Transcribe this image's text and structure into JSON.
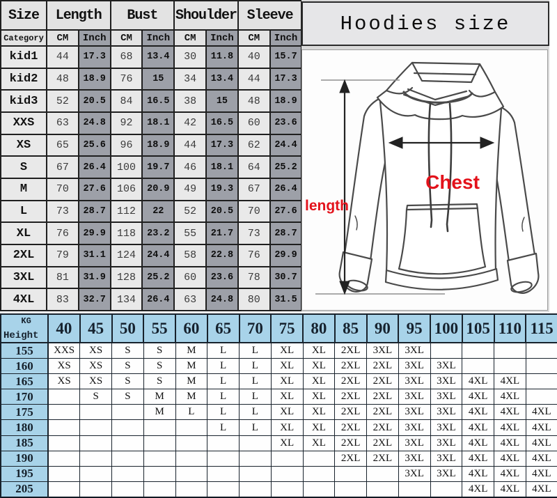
{
  "size_table": {
    "header": [
      "Size",
      "Length",
      "Bust",
      "Shoulder",
      "Sleeve"
    ],
    "subheader": {
      "category": "Category",
      "cm": "CM",
      "inch": "Inch"
    },
    "rows": [
      [
        "kid1",
        "44",
        "17.3",
        "68",
        "13.4",
        "30",
        "11.8",
        "40",
        "15.7"
      ],
      [
        "kid2",
        "48",
        "18.9",
        "76",
        "15",
        "34",
        "13.4",
        "44",
        "17.3"
      ],
      [
        "kid3",
        "52",
        "20.5",
        "84",
        "16.5",
        "38",
        "15",
        "48",
        "18.9"
      ],
      [
        "XXS",
        "63",
        "24.8",
        "92",
        "18.1",
        "42",
        "16.5",
        "60",
        "23.6"
      ],
      [
        "XS",
        "65",
        "25.6",
        "96",
        "18.9",
        "44",
        "17.3",
        "62",
        "24.4"
      ],
      [
        "S",
        "67",
        "26.4",
        "100",
        "19.7",
        "46",
        "18.1",
        "64",
        "25.2"
      ],
      [
        "M",
        "70",
        "27.6",
        "106",
        "20.9",
        "49",
        "19.3",
        "67",
        "26.4"
      ],
      [
        "L",
        "73",
        "28.7",
        "112",
        "22",
        "52",
        "20.5",
        "70",
        "27.6"
      ],
      [
        "XL",
        "76",
        "29.9",
        "118",
        "23.2",
        "55",
        "21.7",
        "73",
        "28.7"
      ],
      [
        "2XL",
        "79",
        "31.1",
        "124",
        "24.4",
        "58",
        "22.8",
        "76",
        "29.9"
      ],
      [
        "3XL",
        "81",
        "31.9",
        "128",
        "25.2",
        "60",
        "23.6",
        "78",
        "30.7"
      ],
      [
        "4XL",
        "83",
        "32.7",
        "134",
        "26.4",
        "63",
        "24.8",
        "80",
        "31.5"
      ]
    ]
  },
  "right_panel": {
    "title": "Hoodies size",
    "length_label": "length",
    "chest_label": "Chest"
  },
  "fit_table": {
    "corner_top": "KG",
    "corner_bottom": "Height",
    "weights": [
      "40",
      "45",
      "50",
      "55",
      "60",
      "65",
      "70",
      "75",
      "80",
      "85",
      "90",
      "95",
      "100",
      "105",
      "110",
      "115"
    ],
    "rows": [
      {
        "height": "155",
        "cells": [
          "XXS",
          "XS",
          "S",
          "S",
          "M",
          "L",
          "L",
          "XL",
          "XL",
          "2XL",
          "3XL",
          "3XL",
          "",
          "",
          "",
          ""
        ]
      },
      {
        "height": "160",
        "cells": [
          "XS",
          "XS",
          "S",
          "S",
          "M",
          "L",
          "L",
          "XL",
          "XL",
          "2XL",
          "2XL",
          "3XL",
          "3XL",
          "",
          "",
          ""
        ]
      },
      {
        "height": "165",
        "cells": [
          "XS",
          "XS",
          "S",
          "S",
          "M",
          "L",
          "L",
          "XL",
          "XL",
          "2XL",
          "2XL",
          "3XL",
          "3XL",
          "4XL",
          "4XL",
          ""
        ]
      },
      {
        "height": "170",
        "cells": [
          "",
          "S",
          "S",
          "M",
          "M",
          "L",
          "L",
          "XL",
          "XL",
          "2XL",
          "2XL",
          "3XL",
          "3XL",
          "4XL",
          "4XL",
          ""
        ]
      },
      {
        "height": "175",
        "cells": [
          "",
          "",
          "",
          "M",
          "L",
          "L",
          "L",
          "XL",
          "XL",
          "2XL",
          "2XL",
          "3XL",
          "3XL",
          "4XL",
          "4XL",
          "4XL"
        ]
      },
      {
        "height": "180",
        "cells": [
          "",
          "",
          "",
          "",
          "",
          "L",
          "L",
          "XL",
          "XL",
          "2XL",
          "2XL",
          "3XL",
          "3XL",
          "4XL",
          "4XL",
          "4XL"
        ]
      },
      {
        "height": "185",
        "cells": [
          "",
          "",
          "",
          "",
          "",
          "",
          "",
          "XL",
          "XL",
          "2XL",
          "2XL",
          "3XL",
          "3XL",
          "4XL",
          "4XL",
          "4XL"
        ]
      },
      {
        "height": "190",
        "cells": [
          "",
          "",
          "",
          "",
          "",
          "",
          "",
          "",
          "",
          "2XL",
          "2XL",
          "3XL",
          "3XL",
          "4XL",
          "4XL",
          "4XL"
        ]
      },
      {
        "height": "195",
        "cells": [
          "",
          "",
          "",
          "",
          "",
          "",
          "",
          "",
          "",
          "",
          "",
          "3XL",
          "3XL",
          "4XL",
          "4XL",
          "4XL"
        ]
      },
      {
        "height": "205",
        "cells": [
          "",
          "",
          "",
          "",
          "",
          "",
          "",
          "",
          "",
          "",
          "",
          "",
          "",
          "4XL",
          "4XL",
          "4XL"
        ]
      }
    ]
  },
  "colors": {
    "header_blue": "#a8d3e9",
    "cell_light_gray": "#e9e9e9",
    "cell_dark_gray": "#9da0a8",
    "header_gray": "#e3e3e3",
    "accent_red": "#e3121b"
  }
}
